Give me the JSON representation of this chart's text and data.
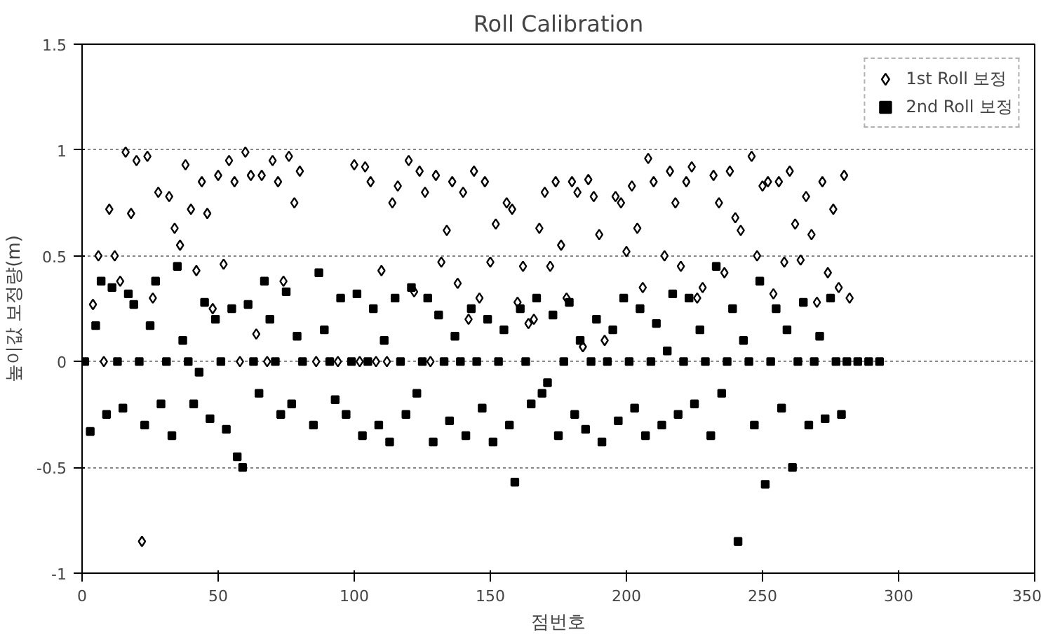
{
  "chart_data": {
    "type": "scatter",
    "title": "Roll Calibration",
    "xlabel": "점번호",
    "ylabel": "높이값 보정량(m)",
    "xlim": [
      0,
      350
    ],
    "xticks": [
      0,
      50,
      100,
      150,
      200,
      250,
      300,
      350
    ],
    "ylim": [
      -1,
      1.5
    ],
    "yticks": [
      -1,
      -0.5,
      0,
      0.5,
      1,
      1.5
    ],
    "grid": "y",
    "legend": "top right",
    "series": [
      {
        "name": "1st Roll 보정",
        "color": "#000000",
        "marker": "diamond",
        "x": [
          4,
          6,
          8,
          10,
          12,
          14,
          16,
          18,
          20,
          22,
          24,
          26,
          28,
          32,
          34,
          36,
          38,
          40,
          42,
          44,
          46,
          48,
          50,
          52,
          54,
          56,
          58,
          60,
          62,
          64,
          66,
          68,
          70,
          72,
          74,
          76,
          78,
          80,
          86,
          94,
          100,
          102,
          104,
          106,
          108,
          110,
          112,
          114,
          116,
          120,
          122,
          124,
          126,
          128,
          130,
          132,
          134,
          136,
          138,
          140,
          142,
          144,
          146,
          148,
          150,
          152,
          156,
          158,
          160,
          162,
          164,
          166,
          168,
          170,
          172,
          174,
          176,
          178,
          180,
          182,
          184,
          186,
          188,
          190,
          192,
          196,
          198,
          200,
          202,
          204,
          206,
          208,
          210,
          214,
          216,
          218,
          220,
          222,
          224,
          226,
          228,
          232,
          234,
          236,
          238,
          240,
          242,
          246,
          248,
          250,
          252,
          254,
          256,
          258,
          260,
          262,
          264,
          266,
          268,
          270,
          272,
          274,
          276,
          278,
          280,
          282
        ],
        "values": [
          0.27,
          0.5,
          0.0,
          0.72,
          0.5,
          0.38,
          0.99,
          0.7,
          0.95,
          -0.85,
          0.97,
          0.3,
          0.8,
          0.78,
          0.63,
          0.55,
          0.93,
          0.72,
          0.43,
          0.85,
          0.7,
          0.25,
          0.88,
          0.46,
          0.95,
          0.85,
          0.0,
          0.99,
          0.88,
          0.13,
          0.88,
          0.0,
          0.95,
          0.85,
          0.38,
          0.97,
          0.75,
          0.9,
          0.0,
          0.0,
          0.93,
          0.0,
          0.92,
          0.85,
          0.0,
          0.43,
          0.0,
          0.75,
          0.83,
          0.95,
          0.33,
          0.9,
          0.8,
          0.0,
          0.88,
          0.47,
          0.62,
          0.85,
          0.37,
          0.8,
          0.2,
          0.9,
          0.3,
          0.85,
          0.47,
          0.65,
          0.75,
          0.72,
          0.28,
          0.45,
          0.18,
          0.2,
          0.63,
          0.8,
          0.45,
          0.85,
          0.55,
          0.3,
          0.85,
          0.8,
          0.07,
          0.86,
          0.78,
          0.6,
          0.1,
          0.78,
          0.75,
          0.52,
          0.83,
          0.63,
          0.35,
          0.96,
          0.85,
          0.5,
          0.9,
          0.75,
          0.45,
          0.85,
          0.92,
          0.3,
          0.35,
          0.88,
          0.75,
          0.42,
          0.9,
          0.68,
          0.62,
          0.97,
          0.5,
          0.83,
          0.85,
          0.32,
          0.85,
          0.47,
          0.9,
          0.65,
          0.48,
          0.78,
          0.6,
          0.28,
          0.85,
          0.42,
          0.72,
          0.35,
          0.88,
          0.3
        ]
      },
      {
        "name": "2nd Roll 보정",
        "color": "#000000",
        "marker": "square",
        "x": [
          1,
          3,
          5,
          7,
          9,
          11,
          13,
          15,
          17,
          19,
          21,
          23,
          25,
          27,
          29,
          31,
          33,
          35,
          37,
          39,
          41,
          43,
          45,
          47,
          49,
          51,
          53,
          55,
          57,
          59,
          61,
          63,
          65,
          67,
          69,
          71,
          73,
          75,
          77,
          79,
          81,
          85,
          87,
          89,
          91,
          93,
          95,
          97,
          99,
          101,
          103,
          105,
          107,
          109,
          111,
          113,
          115,
          117,
          119,
          121,
          123,
          125,
          127,
          129,
          131,
          133,
          135,
          137,
          139,
          141,
          143,
          145,
          147,
          149,
          151,
          153,
          155,
          157,
          159,
          161,
          163,
          165,
          167,
          169,
          171,
          173,
          175,
          177,
          179,
          181,
          183,
          185,
          187,
          189,
          191,
          193,
          195,
          197,
          199,
          201,
          203,
          205,
          207,
          209,
          211,
          213,
          215,
          217,
          219,
          221,
          223,
          225,
          227,
          229,
          231,
          233,
          235,
          237,
          239,
          241,
          243,
          245,
          247,
          249,
          251,
          253,
          255,
          257,
          259,
          261,
          263,
          265,
          267,
          269,
          271,
          273,
          275,
          277,
          279,
          281,
          285,
          289,
          293
        ],
        "values": [
          0.0,
          -0.33,
          0.17,
          0.38,
          -0.25,
          0.35,
          0.0,
          -0.22,
          0.32,
          0.27,
          0.0,
          -0.3,
          0.17,
          0.38,
          -0.2,
          0.0,
          -0.35,
          0.45,
          0.1,
          0.0,
          -0.2,
          -0.05,
          0.28,
          -0.27,
          0.2,
          0.0,
          -0.32,
          0.25,
          -0.45,
          -0.5,
          0.27,
          0.0,
          -0.15,
          0.38,
          0.2,
          0.0,
          -0.25,
          0.33,
          -0.2,
          0.12,
          0.0,
          -0.3,
          0.42,
          0.15,
          0.0,
          -0.18,
          0.3,
          -0.25,
          0.0,
          0.32,
          -0.35,
          0.0,
          0.25,
          -0.3,
          0.1,
          -0.38,
          0.3,
          0.0,
          -0.25,
          0.35,
          -0.15,
          0.0,
          0.3,
          -0.38,
          0.22,
          0.0,
          -0.28,
          0.12,
          0.0,
          -0.35,
          0.25,
          0.0,
          -0.22,
          0.2,
          -0.38,
          0.0,
          0.15,
          -0.3,
          -0.57,
          0.25,
          0.0,
          -0.2,
          0.3,
          -0.15,
          -0.1,
          0.22,
          -0.35,
          0.0,
          0.28,
          -0.25,
          0.1,
          -0.32,
          0.0,
          0.2,
          -0.38,
          0.0,
          0.15,
          -0.28,
          0.3,
          0.0,
          -0.22,
          0.25,
          -0.35,
          0.0,
          0.18,
          -0.3,
          0.05,
          0.32,
          -0.25,
          0.0,
          0.3,
          -0.2,
          0.15,
          0.0,
          -0.35,
          0.45,
          -0.15,
          0.0,
          0.25,
          -0.85,
          0.1,
          0.0,
          -0.3,
          0.38,
          -0.58,
          0.0,
          0.25,
          -0.22,
          0.15,
          -0.5,
          0.0,
          0.28,
          -0.3,
          0.0,
          0.12,
          -0.27,
          0.3,
          0.0,
          -0.25,
          0.0,
          0.0,
          0.0,
          0.0
        ]
      }
    ]
  }
}
